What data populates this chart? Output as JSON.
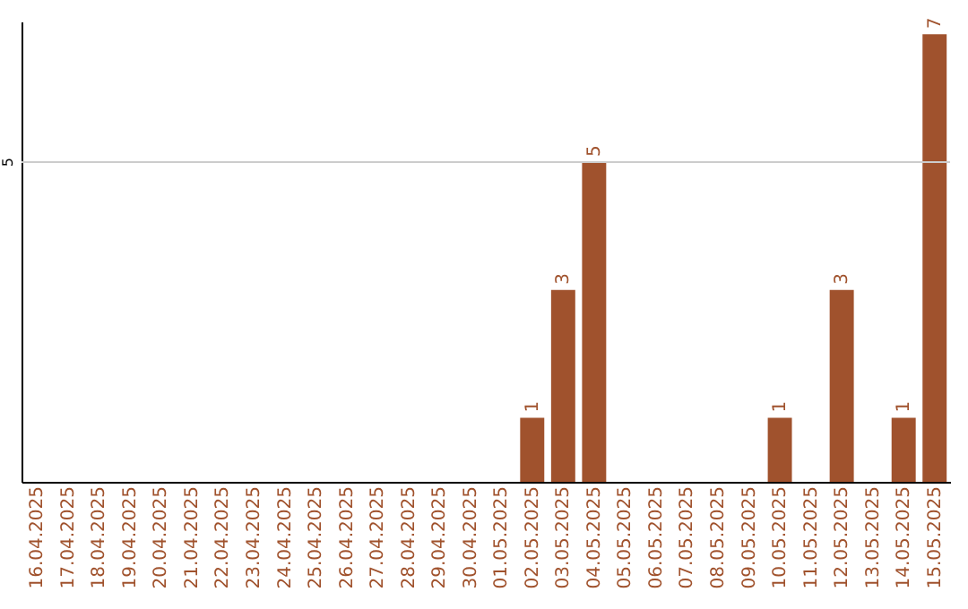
{
  "chart_data": {
    "type": "bar",
    "categories": [
      "16.04.2025",
      "17.04.2025",
      "18.04.2025",
      "19.04.2025",
      "20.04.2025",
      "21.04.2025",
      "22.04.2025",
      "23.04.2025",
      "24.04.2025",
      "25.04.2025",
      "26.04.2025",
      "27.04.2025",
      "28.04.2025",
      "29.04.2025",
      "30.04.2025",
      "01.05.2025",
      "02.05.2025",
      "03.05.2025",
      "04.05.2025",
      "05.05.2025",
      "06.05.2025",
      "07.05.2025",
      "08.05.2025",
      "09.05.2025",
      "10.05.2025",
      "11.05.2025",
      "12.05.2025",
      "13.05.2025",
      "14.05.2025",
      "15.05.2025"
    ],
    "values": [
      null,
      null,
      null,
      null,
      null,
      null,
      null,
      null,
      null,
      null,
      null,
      null,
      null,
      null,
      null,
      null,
      1,
      3,
      5,
      null,
      null,
      null,
      null,
      null,
      1,
      null,
      3,
      null,
      1,
      7
    ],
    "value_labels": [
      null,
      null,
      null,
      null,
      null,
      null,
      null,
      null,
      null,
      null,
      null,
      null,
      null,
      null,
      null,
      null,
      "1",
      "3",
      "5",
      null,
      null,
      null,
      null,
      null,
      "1",
      null,
      "3",
      null,
      "1",
      "7"
    ],
    "color": "#a0522d",
    "ylim": [
      0,
      7.2
    ],
    "ref_lines": [
      {
        "axis": "y",
        "value": 5,
        "label": "5",
        "color": "#cccccc"
      }
    ]
  }
}
